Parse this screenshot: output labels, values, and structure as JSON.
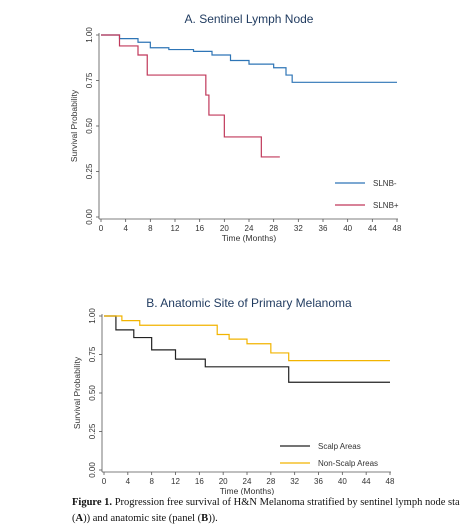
{
  "chart_data": [
    {
      "type": "line",
      "step": true,
      "title": "A. Sentinel Lymph Node",
      "xlabel": "Time (Months)",
      "ylabel": "Survival Probability",
      "xlim": [
        0,
        48
      ],
      "ylim": [
        0,
        1
      ],
      "xticks": [
        "0",
        "4",
        "8",
        "12",
        "16",
        "20",
        "24",
        "28",
        "32",
        "36",
        "40",
        "44",
        "48"
      ],
      "yticks": [
        "0.00",
        "0.25",
        "0.50",
        "0.75",
        "1.00"
      ],
      "grid": false,
      "legend_position": "bottom-right",
      "series": [
        {
          "name": "SLNB-",
          "color": "#2e75b6",
          "x": [
            0,
            3,
            6,
            8,
            11,
            15,
            18,
            21,
            24,
            28,
            30,
            31,
            48
          ],
          "y": [
            1.0,
            0.98,
            0.96,
            0.93,
            0.92,
            0.91,
            0.89,
            0.86,
            0.84,
            0.82,
            0.78,
            0.74,
            0.74
          ]
        },
        {
          "name": "SLNB+",
          "color": "#c0385a",
          "x": [
            0,
            3,
            6,
            7.5,
            17,
            17.5,
            20,
            26,
            29
          ],
          "y": [
            1.0,
            0.94,
            0.89,
            0.78,
            0.67,
            0.56,
            0.44,
            0.33,
            0.33
          ]
        }
      ]
    },
    {
      "type": "line",
      "step": true,
      "title": "B. Anatomic Site of Primary Melanoma",
      "xlabel": "Time (Months)",
      "ylabel": "Survival Probability",
      "xlim": [
        0,
        48
      ],
      "ylim": [
        0,
        1
      ],
      "xticks": [
        "0",
        "4",
        "8",
        "12",
        "16",
        "20",
        "24",
        "28",
        "32",
        "36",
        "40",
        "44",
        "48"
      ],
      "yticks": [
        "0.00",
        "0.25",
        "0.50",
        "0.75",
        "1.00"
      ],
      "grid": false,
      "legend_position": "bottom-right",
      "series": [
        {
          "name": "Scalp Areas",
          "color": "#222222",
          "x": [
            0,
            2,
            5,
            8,
            12,
            17,
            31,
            48
          ],
          "y": [
            1.0,
            0.91,
            0.86,
            0.78,
            0.72,
            0.67,
            0.57,
            0.57
          ]
        },
        {
          "name": "Non-Scalp Areas",
          "color": "#f2b400",
          "x": [
            0,
            3,
            6,
            19,
            21,
            24,
            28,
            31,
            48
          ],
          "y": [
            1.0,
            0.97,
            0.94,
            0.88,
            0.85,
            0.82,
            0.76,
            0.71,
            0.71
          ]
        }
      ]
    }
  ],
  "caption": {
    "label": "Figure 1.",
    "line1": "Progression free survival of H&N Melanoma stratified by sentinel lymph node sta",
    "line2_pre": "(",
    "line2_a": "A",
    "line2_mid": ")) and anatomic site (panel (",
    "line2_b": "B",
    "line2_post": "))."
  }
}
